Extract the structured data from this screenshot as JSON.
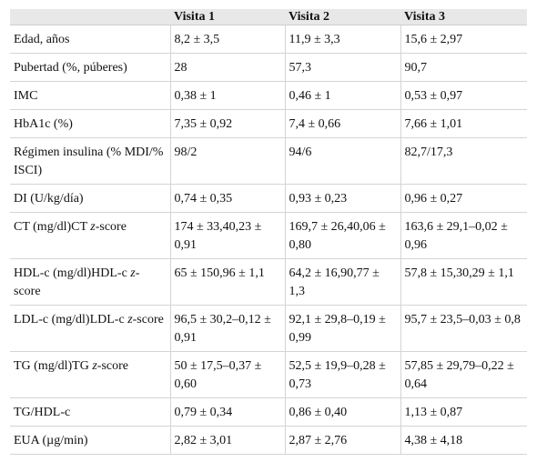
{
  "table": {
    "headers": [
      "",
      "Visita 1",
      "Visita 2",
      "Visita 3"
    ],
    "rows": [
      {
        "label": "Edad, años",
        "v1": "8,2 ± 3,5",
        "v2": "11,9 ± 3,3",
        "v3": "15,6 ± 2,97"
      },
      {
        "label": "Pubertad (%, púberes)",
        "v1": "28",
        "v2": "57,3",
        "v3": "90,7"
      },
      {
        "label": "IMC",
        "v1": "0,38 ± 1",
        "v2": "0,46 ± 1",
        "v3": "0,53 ± 0,97"
      },
      {
        "label": "HbA1c (%)",
        "v1": "7,35 ± 0,92",
        "v2": "7,4 ± 0,66",
        "v3": "7,66 ± 1,01"
      },
      {
        "label": "Régimen insulina (% MDI/% ISCI)",
        "v1": "98/2",
        "v2": "94/6",
        "v3": "82,7/17,3"
      },
      {
        "label": "DI (U/kg/día)",
        "v1": "0,74 ± 0,35",
        "v2": "0,93 ± 0,23",
        "v3": "0,96 ± 0,27"
      },
      {
        "label_a": "CT (mg/dl)CT ",
        "label_em": "z",
        "label_b": "-score",
        "v1": "174 ± 33,40,23 ± 0,91",
        "v2": "169,7 ± 26,40,06 ± 0,80",
        "v3": "163,6 ± 29,1–0,02 ± 0,96"
      },
      {
        "label_a": "HDL-c (mg/dl)HDL-c ",
        "label_em": "z",
        "label_b": "-score",
        "v1": "65 ± 150,96 ± 1,1",
        "v2": "64,2 ± 16,90,77 ± 1,3",
        "v3": "57,8 ± 15,30,29 ± 1,1"
      },
      {
        "label_a": "LDL-c (mg/dl)LDL-c ",
        "label_em": "z",
        "label_b": "-score",
        "v1": "96,5 ± 30,2–0,12 ± 0,91",
        "v2": "92,1 ± 29,8–0,19 ± 0,99",
        "v3": "95,7 ± 23,5–0,03 ± 0,8"
      },
      {
        "label_a": "TG (mg/dl)TG ",
        "label_em": "z",
        "label_b": "-score",
        "v1": "50 ± 17,5–0,37 ± 0,60",
        "v2": "52,5 ± 19,9–0,28 ± 0,73",
        "v3": "57,85 ± 29,79–0,22 ± 0,64"
      },
      {
        "label": "TG/HDL-c",
        "v1": "0,79 ± 0,34",
        "v2": "0,86 ± 0,40",
        "v3": "1,13 ± 0,87"
      },
      {
        "label": "EUA (µg/min)",
        "v1": "2,82 ± 3,01",
        "v2": "2,87 ± 2,76",
        "v3": "4,38 ± 4,18"
      }
    ]
  }
}
